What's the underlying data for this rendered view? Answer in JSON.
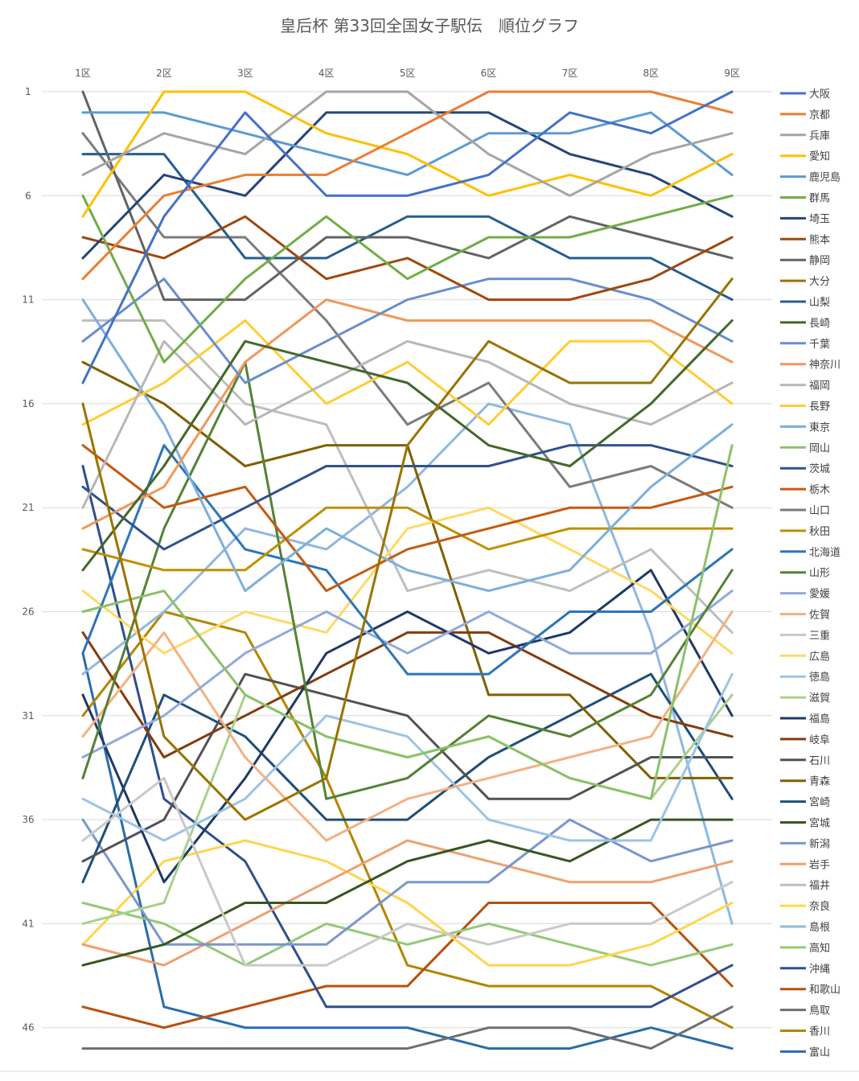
{
  "chart_data": {
    "type": "line",
    "title": "皇后杯 第33回全国女子駅伝　順位グラフ",
    "categories": [
      "1区",
      "2区",
      "3区",
      "4区",
      "5区",
      "6区",
      "7区",
      "8区",
      "9区"
    ],
    "ytick_labels": [
      "1",
      "6",
      "11",
      "16",
      "21",
      "26",
      "31",
      "36",
      "41",
      "46"
    ],
    "ylim": [
      1,
      47
    ],
    "y_reversed": true,
    "grid": true,
    "legend_position": "right",
    "series": [
      {
        "name": "大阪",
        "color": "#4472C4",
        "values": [
          15,
          7,
          2,
          6,
          6,
          5,
          2,
          3,
          1
        ]
      },
      {
        "name": "京都",
        "color": "#ED7D31",
        "values": [
          10,
          6,
          5,
          5,
          3,
          1,
          1,
          1,
          2
        ]
      },
      {
        "name": "兵庫",
        "color": "#A5A5A5",
        "values": [
          5,
          3,
          4,
          1,
          1,
          4,
          6,
          4,
          3
        ]
      },
      {
        "name": "愛知",
        "color": "#FFC000",
        "values": [
          7,
          1,
          1,
          3,
          4,
          6,
          5,
          6,
          4
        ]
      },
      {
        "name": "鹿児島",
        "color": "#5B9BD5",
        "values": [
          2,
          2,
          3,
          4,
          5,
          3,
          3,
          2,
          5
        ]
      },
      {
        "name": "群馬",
        "color": "#70AD47",
        "values": [
          6,
          14,
          10,
          7,
          10,
          8,
          8,
          7,
          6
        ]
      },
      {
        "name": "埼玉",
        "color": "#264478",
        "values": [
          9,
          5,
          6,
          2,
          2,
          2,
          4,
          5,
          7
        ]
      },
      {
        "name": "熊本",
        "color": "#9E480E",
        "values": [
          8,
          9,
          7,
          10,
          9,
          11,
          11,
          10,
          8
        ]
      },
      {
        "name": "静岡",
        "color": "#636363",
        "values": [
          1,
          11,
          11,
          8,
          8,
          9,
          7,
          8,
          9
        ]
      },
      {
        "name": "大分",
        "color": "#997300",
        "values": [
          16,
          32,
          36,
          34,
          18,
          13,
          15,
          15,
          10
        ]
      },
      {
        "name": "山梨",
        "color": "#255E91",
        "values": [
          4,
          4,
          9,
          9,
          7,
          7,
          9,
          9,
          11
        ]
      },
      {
        "name": "長崎",
        "color": "#43682B",
        "values": [
          24,
          19,
          13,
          14,
          15,
          18,
          19,
          16,
          12
        ]
      },
      {
        "name": "千葉",
        "color": "#698ED0",
        "values": [
          13,
          10,
          15,
          13,
          11,
          10,
          10,
          11,
          13
        ]
      },
      {
        "name": "神奈川",
        "color": "#F1975A",
        "values": [
          22,
          20,
          14,
          11,
          12,
          12,
          12,
          12,
          14
        ]
      },
      {
        "name": "福岡",
        "color": "#B7B7B7",
        "values": [
          21,
          13,
          17,
          15,
          13,
          14,
          16,
          17,
          15
        ]
      },
      {
        "name": "長野",
        "color": "#FFCD33",
        "values": [
          17,
          15,
          12,
          16,
          14,
          17,
          13,
          13,
          16
        ]
      },
      {
        "name": "東京",
        "color": "#7CAFDD",
        "values": [
          11,
          17,
          25,
          22,
          24,
          25,
          24,
          20,
          17
        ]
      },
      {
        "name": "岡山",
        "color": "#8CC168",
        "values": [
          26,
          25,
          30,
          32,
          33,
          32,
          34,
          35,
          18
        ]
      },
      {
        "name": "茨城",
        "color": "#2F528F",
        "values": [
          20,
          23,
          21,
          19,
          19,
          19,
          18,
          18,
          19
        ]
      },
      {
        "name": "栃木",
        "color": "#C55A11",
        "values": [
          18,
          21,
          20,
          25,
          23,
          22,
          21,
          21,
          20
        ]
      },
      {
        "name": "山口",
        "color": "#7B7B7B",
        "values": [
          3,
          8,
          8,
          12,
          17,
          15,
          20,
          19,
          21
        ]
      },
      {
        "name": "秋田",
        "color": "#BF9000",
        "values": [
          23,
          24,
          24,
          21,
          21,
          23,
          22,
          22,
          22
        ]
      },
      {
        "name": "北海道",
        "color": "#2E75B6",
        "values": [
          28,
          18,
          23,
          24,
          29,
          29,
          26,
          26,
          23
        ]
      },
      {
        "name": "山形",
        "color": "#548235",
        "values": [
          34,
          22,
          14,
          35,
          34,
          31,
          32,
          30,
          24
        ]
      },
      {
        "name": "愛媛",
        "color": "#8FAADC",
        "values": [
          33,
          31,
          28,
          26,
          28,
          26,
          28,
          28,
          25
        ]
      },
      {
        "name": "佐賀",
        "color": "#F4B183",
        "values": [
          32,
          27,
          33,
          37,
          35,
          34,
          33,
          32,
          26
        ]
      },
      {
        "name": "三重",
        "color": "#C9C9C9",
        "values": [
          37,
          34,
          43,
          43,
          41,
          42,
          41,
          41,
          39
        ]
      },
      {
        "name": "広島",
        "color": "#FFD966",
        "values": [
          25,
          28,
          26,
          27,
          22,
          21,
          23,
          25,
          28
        ]
      },
      {
        "name": "徳島",
        "color": "#9DC3E6",
        "values": [
          35,
          37,
          35,
          31,
          32,
          36,
          37,
          37,
          29
        ]
      },
      {
        "name": "滋賀",
        "color": "#A9D18E",
        "values": [
          41,
          40,
          30,
          32,
          33,
          32,
          34,
          35,
          30
        ]
      },
      {
        "name": "福島",
        "color": "#203864",
        "values": [
          30,
          39,
          34,
          28,
          26,
          28,
          27,
          24,
          31
        ]
      },
      {
        "name": "岐阜",
        "color": "#843C0C",
        "values": [
          27,
          33,
          31,
          29,
          27,
          27,
          29,
          31,
          32
        ]
      },
      {
        "name": "石川",
        "color": "#525252",
        "values": [
          38,
          36,
          29,
          30,
          31,
          35,
          35,
          33,
          33
        ]
      },
      {
        "name": "青森",
        "color": "#7F6000",
        "values": [
          14,
          16,
          19,
          18,
          18,
          30,
          30,
          34,
          34
        ]
      },
      {
        "name": "宮崎",
        "color": "#1F4E79",
        "values": [
          39,
          30,
          32,
          36,
          36,
          33,
          31,
          29,
          35
        ]
      },
      {
        "name": "宮城",
        "color": "#375623",
        "values": [
          43,
          42,
          40,
          40,
          38,
          37,
          38,
          36,
          36
        ]
      },
      {
        "name": "新潟",
        "color": "#7A96CC",
        "values": [
          36,
          42,
          42,
          42,
          39,
          39,
          36,
          38,
          37
        ]
      },
      {
        "name": "岩手",
        "color": "#EFA070",
        "values": [
          42,
          43,
          41,
          39,
          37,
          38,
          39,
          39,
          38
        ]
      },
      {
        "name": "福井",
        "color": "#BEBEBE",
        "values": [
          12,
          12,
          16,
          17,
          25,
          24,
          25,
          23,
          27
        ]
      },
      {
        "name": "奈良",
        "color": "#FFD54F",
        "values": [
          42,
          38,
          37,
          38,
          40,
          43,
          43,
          42,
          40
        ]
      },
      {
        "name": "島根",
        "color": "#8FB8E0",
        "values": [
          29,
          26,
          22,
          23,
          20,
          16,
          17,
          27,
          41
        ]
      },
      {
        "name": "高知",
        "color": "#94C973",
        "values": [
          40,
          41,
          43,
          41,
          42,
          41,
          42,
          43,
          42
        ]
      },
      {
        "name": "沖縄",
        "color": "#2F4E8F",
        "values": [
          19,
          35,
          38,
          45,
          45,
          45,
          45,
          45,
          43
        ]
      },
      {
        "name": "和歌山",
        "color": "#B8500E",
        "values": [
          45,
          46,
          45,
          44,
          44,
          40,
          40,
          40,
          44
        ]
      },
      {
        "name": "鳥取",
        "color": "#6E6E6E",
        "values": [
          47,
          47,
          47,
          47,
          47,
          46,
          46,
          47,
          45
        ]
      },
      {
        "name": "香川",
        "color": "#B38600",
        "values": [
          31,
          26,
          27,
          34,
          43,
          44,
          44,
          44,
          46
        ]
      },
      {
        "name": "富山",
        "color": "#2A6CA8",
        "values": [
          28,
          45,
          46,
          46,
          46,
          47,
          47,
          46,
          47
        ]
      }
    ]
  }
}
